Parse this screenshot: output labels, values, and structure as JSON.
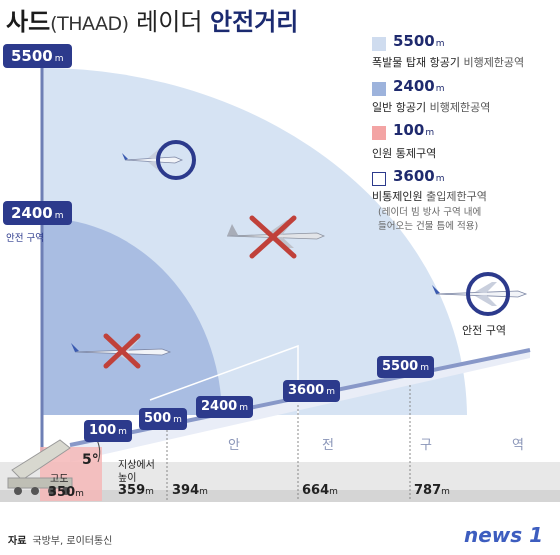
{
  "title": {
    "main": "사드",
    "paren": "(THAAD)",
    "radar": " 레이더 ",
    "emph": "안전거리"
  },
  "unit_m": "m",
  "axis_labels": {
    "top": "5500",
    "mid": "2400",
    "mid_caption": "안전 구역"
  },
  "legend": [
    {
      "value": "5500",
      "desc": "폭발물 탑재 항공기",
      "desc_light": " 비행제한공역",
      "color": "#cfdcef"
    },
    {
      "value": "2400",
      "desc": "일반 항공기",
      "desc_light": " 비행제한공역",
      "color": "#9db3dc"
    },
    {
      "value": "100",
      "desc": "인원 통제구역",
      "desc_light": "",
      "color": "#f3a4a4"
    },
    {
      "value": "3600",
      "desc": "비통제인원",
      "desc_light": " 출입제한구역",
      "color": "#ffffff",
      "note1": "(레이더 빔 방사 구역 내에",
      "note2": "들어오는 건물 틈에 적용)"
    }
  ],
  "beam_labels": [
    "100",
    "500",
    "2400",
    "3600",
    "5500"
  ],
  "safe_zone_label": "안전 구역",
  "ground_word": [
    "안",
    "전",
    "구",
    "역"
  ],
  "angle": "5°",
  "altitude": {
    "label": "고도",
    "value": "350"
  },
  "ground_height": {
    "label1": "지상에서",
    "label2": "높이"
  },
  "distances": [
    "359",
    "394",
    "664",
    "787"
  ],
  "icons": [
    "radar-icon",
    "airplane-icon",
    "fighter-jet-icon",
    "no-entry-cross-icon",
    "safe-circle-icon"
  ],
  "footer": {
    "source_label": "자료",
    "source": "국방부, 로이터통신"
  },
  "logo": "news 1"
}
